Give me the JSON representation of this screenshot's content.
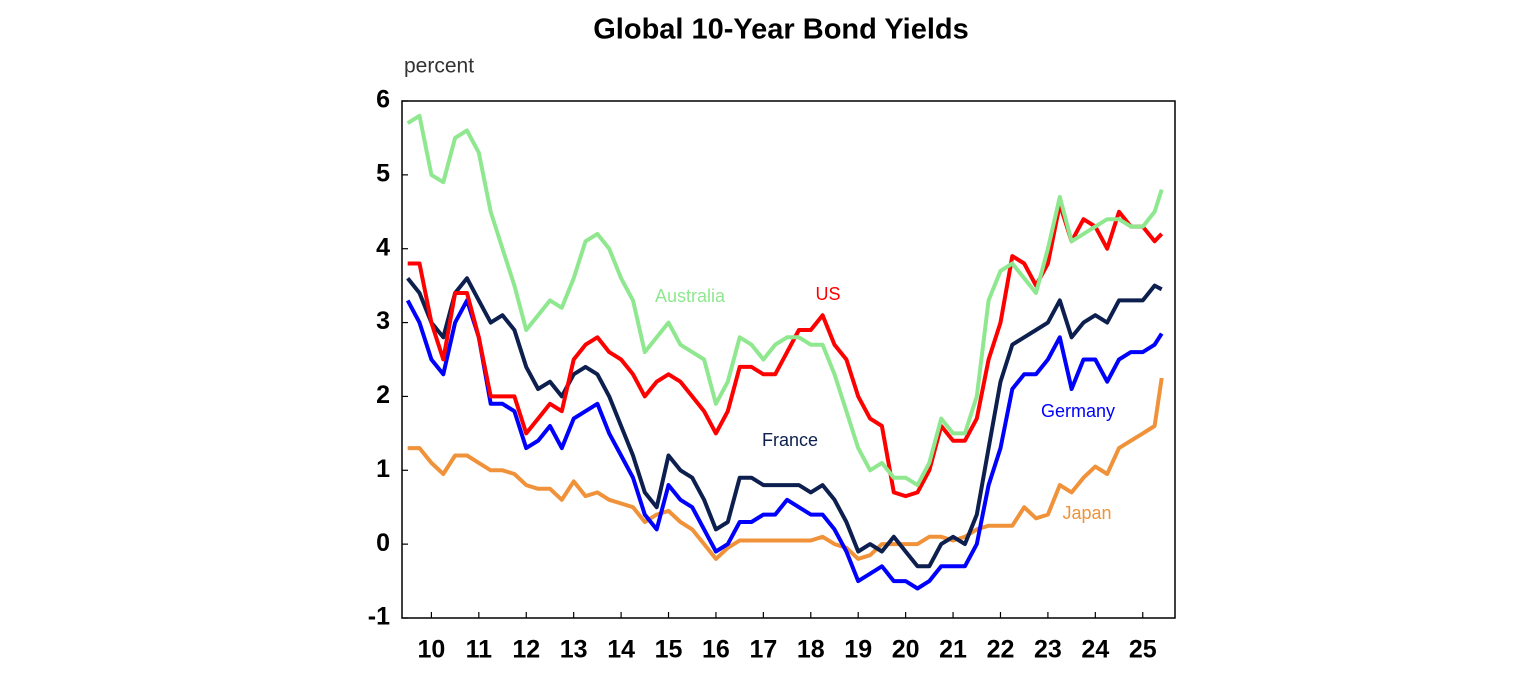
{
  "chart_data": {
    "type": "line",
    "title": "Global 10-Year Bond Yields",
    "y_label": "percent",
    "x": [
      2010,
      2010.25,
      2010.5,
      2010.75,
      2011,
      2011.25,
      2011.5,
      2011.75,
      2012,
      2012.25,
      2012.5,
      2012.75,
      2013,
      2013.25,
      2013.5,
      2013.75,
      2014,
      2014.25,
      2014.5,
      2014.75,
      2015,
      2015.25,
      2015.5,
      2015.75,
      2016,
      2016.25,
      2016.5,
      2016.75,
      2017,
      2017.25,
      2017.5,
      2017.75,
      2018,
      2018.25,
      2018.5,
      2018.75,
      2019,
      2019.25,
      2019.5,
      2019.75,
      2020,
      2020.25,
      2020.5,
      2020.75,
      2021,
      2021.25,
      2021.5,
      2021.75,
      2022,
      2022.25,
      2022.5,
      2022.75,
      2023,
      2023.25,
      2023.5,
      2023.75,
      2024,
      2024.25,
      2024.5,
      2024.75,
      2025,
      2025.25,
      2025.5,
      2025.75,
      2025.9
    ],
    "series": [
      {
        "name": "Japan",
        "color": "#f0923a",
        "values": [
          1.3,
          1.3,
          1.1,
          0.95,
          1.2,
          1.2,
          1.1,
          1.0,
          1.0,
          0.95,
          0.8,
          0.75,
          0.75,
          0.6,
          0.85,
          0.65,
          0.7,
          0.6,
          0.55,
          0.5,
          0.3,
          0.4,
          0.45,
          0.3,
          0.2,
          0.0,
          -0.2,
          -0.05,
          0.05,
          0.05,
          0.05,
          0.05,
          0.05,
          0.05,
          0.05,
          0.1,
          0.0,
          -0.05,
          -0.2,
          -0.15,
          0.0,
          0.0,
          0.0,
          0.0,
          0.1,
          0.1,
          0.05,
          0.1,
          0.2,
          0.25,
          0.25,
          0.25,
          0.5,
          0.35,
          0.4,
          0.8,
          0.7,
          0.9,
          1.05,
          0.95,
          1.3,
          1.4,
          1.5,
          1.6,
          2.25
        ]
      },
      {
        "name": "Germany",
        "color": "#0000ff",
        "values": [
          3.3,
          3.0,
          2.5,
          2.3,
          3.0,
          3.3,
          2.8,
          1.9,
          1.9,
          1.8,
          1.3,
          1.4,
          1.6,
          1.3,
          1.7,
          1.8,
          1.9,
          1.5,
          1.2,
          0.9,
          0.4,
          0.2,
          0.8,
          0.6,
          0.5,
          0.2,
          -0.1,
          0.0,
          0.3,
          0.3,
          0.4,
          0.4,
          0.6,
          0.5,
          0.4,
          0.4,
          0.2,
          -0.1,
          -0.5,
          -0.4,
          -0.3,
          -0.5,
          -0.5,
          -0.6,
          -0.5,
          -0.3,
          -0.3,
          -0.3,
          0.0,
          0.8,
          1.3,
          2.1,
          2.3,
          2.3,
          2.5,
          2.8,
          2.1,
          2.5,
          2.5,
          2.2,
          2.5,
          2.6,
          2.6,
          2.7,
          2.85
        ]
      },
      {
        "name": "France",
        "color": "#0d1f4f",
        "values": [
          3.6,
          3.4,
          3.0,
          2.8,
          3.4,
          3.6,
          3.3,
          3.0,
          3.1,
          2.9,
          2.4,
          2.1,
          2.2,
          2.0,
          2.3,
          2.4,
          2.3,
          2.0,
          1.6,
          1.2,
          0.7,
          0.5,
          1.2,
          1.0,
          0.9,
          0.6,
          0.2,
          0.3,
          0.9,
          0.9,
          0.8,
          0.8,
          0.8,
          0.8,
          0.7,
          0.8,
          0.6,
          0.3,
          -0.1,
          0.0,
          -0.1,
          0.1,
          -0.1,
          -0.3,
          -0.3,
          0.0,
          0.1,
          0.0,
          0.4,
          1.3,
          2.2,
          2.7,
          2.8,
          2.9,
          3.0,
          3.3,
          2.8,
          3.0,
          3.1,
          3.0,
          3.3,
          3.3,
          3.3,
          3.5,
          3.45
        ]
      },
      {
        "name": "US",
        "color": "#ff0000",
        "values": [
          3.8,
          3.8,
          3.0,
          2.5,
          3.4,
          3.4,
          2.8,
          2.0,
          2.0,
          2.0,
          1.5,
          1.7,
          1.9,
          1.8,
          2.5,
          2.7,
          2.8,
          2.6,
          2.5,
          2.3,
          2.0,
          2.2,
          2.3,
          2.2,
          2.0,
          1.8,
          1.5,
          1.8,
          2.4,
          2.4,
          2.3,
          2.3,
          2.6,
          2.9,
          2.9,
          3.1,
          2.7,
          2.5,
          2.0,
          1.7,
          1.6,
          0.7,
          0.65,
          0.7,
          1.0,
          1.6,
          1.4,
          1.4,
          1.7,
          2.5,
          3.0,
          3.9,
          3.8,
          3.5,
          3.8,
          4.6,
          4.1,
          4.4,
          4.3,
          4.0,
          4.5,
          4.3,
          4.3,
          4.1,
          4.2
        ]
      },
      {
        "name": "Australia",
        "color": "#8fe88f",
        "values": [
          5.7,
          5.8,
          5.0,
          4.9,
          5.5,
          5.6,
          5.3,
          4.5,
          4.0,
          3.5,
          2.9,
          3.1,
          3.3,
          3.2,
          3.6,
          4.1,
          4.2,
          4.0,
          3.6,
          3.3,
          2.6,
          2.8,
          3.0,
          2.7,
          2.6,
          2.5,
          1.9,
          2.2,
          2.8,
          2.7,
          2.5,
          2.7,
          2.8,
          2.8,
          2.7,
          2.7,
          2.3,
          1.8,
          1.3,
          1.0,
          1.1,
          0.9,
          0.9,
          0.8,
          1.1,
          1.7,
          1.5,
          1.5,
          2.0,
          3.3,
          3.7,
          3.8,
          3.6,
          3.4,
          4.0,
          4.7,
          4.1,
          4.2,
          4.3,
          4.4,
          4.4,
          4.3,
          4.3,
          4.5,
          4.8
        ]
      }
    ],
    "xlim": [
      2009.88,
      2026.18
    ],
    "xticks": [
      {
        "value": 2010.5,
        "label": "10"
      },
      {
        "value": 2011.5,
        "label": "11"
      },
      {
        "value": 2012.5,
        "label": "12"
      },
      {
        "value": 2013.5,
        "label": "13"
      },
      {
        "value": 2014.5,
        "label": "14"
      },
      {
        "value": 2015.5,
        "label": "15"
      },
      {
        "value": 2016.5,
        "label": "16"
      },
      {
        "value": 2017.5,
        "label": "17"
      },
      {
        "value": 2018.5,
        "label": "18"
      },
      {
        "value": 2019.5,
        "label": "19"
      },
      {
        "value": 2020.5,
        "label": "20"
      },
      {
        "value": 2021.5,
        "label": "21"
      },
      {
        "value": 2022.5,
        "label": "22"
      },
      {
        "value": 2023.5,
        "label": "23"
      },
      {
        "value": 2024.5,
        "label": "24"
      },
      {
        "value": 2025.5,
        "label": "25"
      }
    ],
    "ylim": [
      -1,
      6
    ],
    "yticks": [
      -1,
      0,
      1,
      2,
      3,
      4,
      5,
      6
    ],
    "grid": false
  }
}
